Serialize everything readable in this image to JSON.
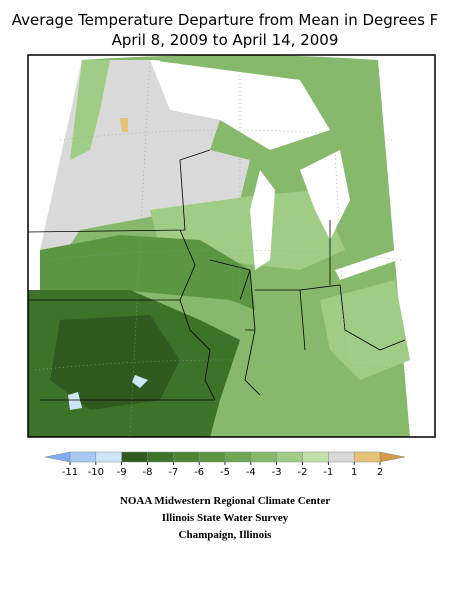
{
  "title": [
    "Average Temperature Departure from Mean in Degrees F",
    "April 8, 2009 to April 14, 2009"
  ],
  "legend": {
    "ticks": [
      -11,
      -10,
      -9,
      -8,
      -7,
      -6,
      -5,
      -4,
      -3,
      -2,
      -1,
      1,
      2
    ],
    "colors": [
      "#a6c8f2",
      "#cde6f7",
      "#2f5a1f",
      "#3d7329",
      "#4c8535",
      "#5d9643",
      "#70a756",
      "#86b96b",
      "#a0cd86",
      "#c0e2a8",
      "#d9d9d9",
      "#e6c276"
    ],
    "under_color": "#7eaaf0",
    "over_color": "#d29a4a"
  },
  "credits": [
    "NOAA Midwestern Regional Climate Center",
    "Illinois State Water Survey",
    "Champaign, Illinois"
  ]
}
